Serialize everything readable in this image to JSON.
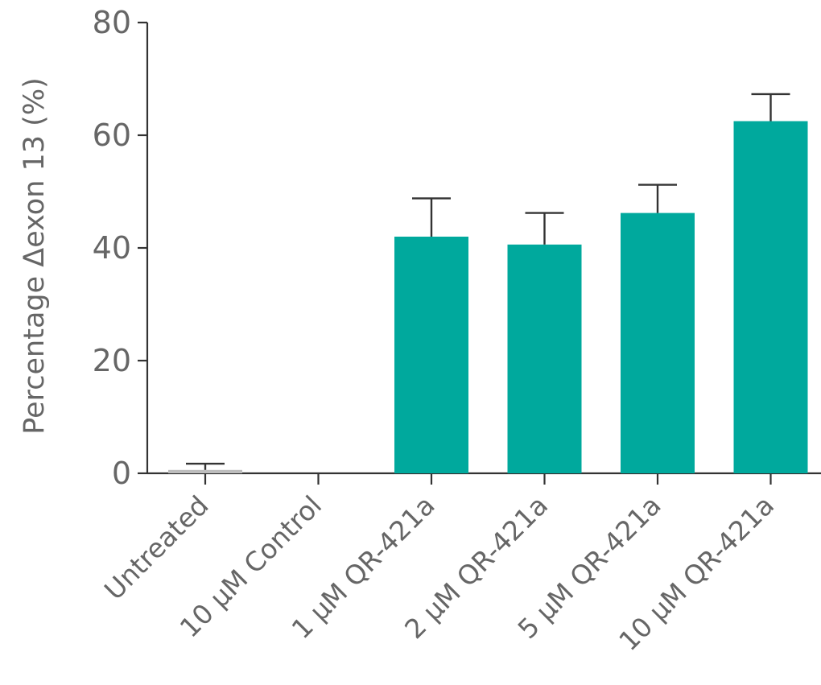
{
  "chart_data": {
    "type": "bar",
    "title": "",
    "xlabel": "",
    "ylabel": "Percentage Δexon 13 (%)",
    "ylim": [
      0,
      80
    ],
    "yticks": [
      0,
      20,
      40,
      60,
      80
    ],
    "grid": false,
    "legend": "none",
    "categories": [
      "Untreated",
      "10 μM Control",
      "1 μM QR-421a",
      "2 μM QR-421a",
      "5 μM QR-421a",
      "10 μM QR-421a"
    ],
    "series": [
      {
        "values": [
          0.6,
          0,
          42,
          40.6,
          46.2,
          62.5
        ],
        "error_upper": [
          1.1,
          0,
          6.8,
          5.6,
          5.0,
          4.8
        ]
      }
    ],
    "colors": {
      "bar": "#00A99D",
      "axis": "#333333",
      "text": "#666666",
      "untreated_bar": "#bdbdbd"
    }
  }
}
